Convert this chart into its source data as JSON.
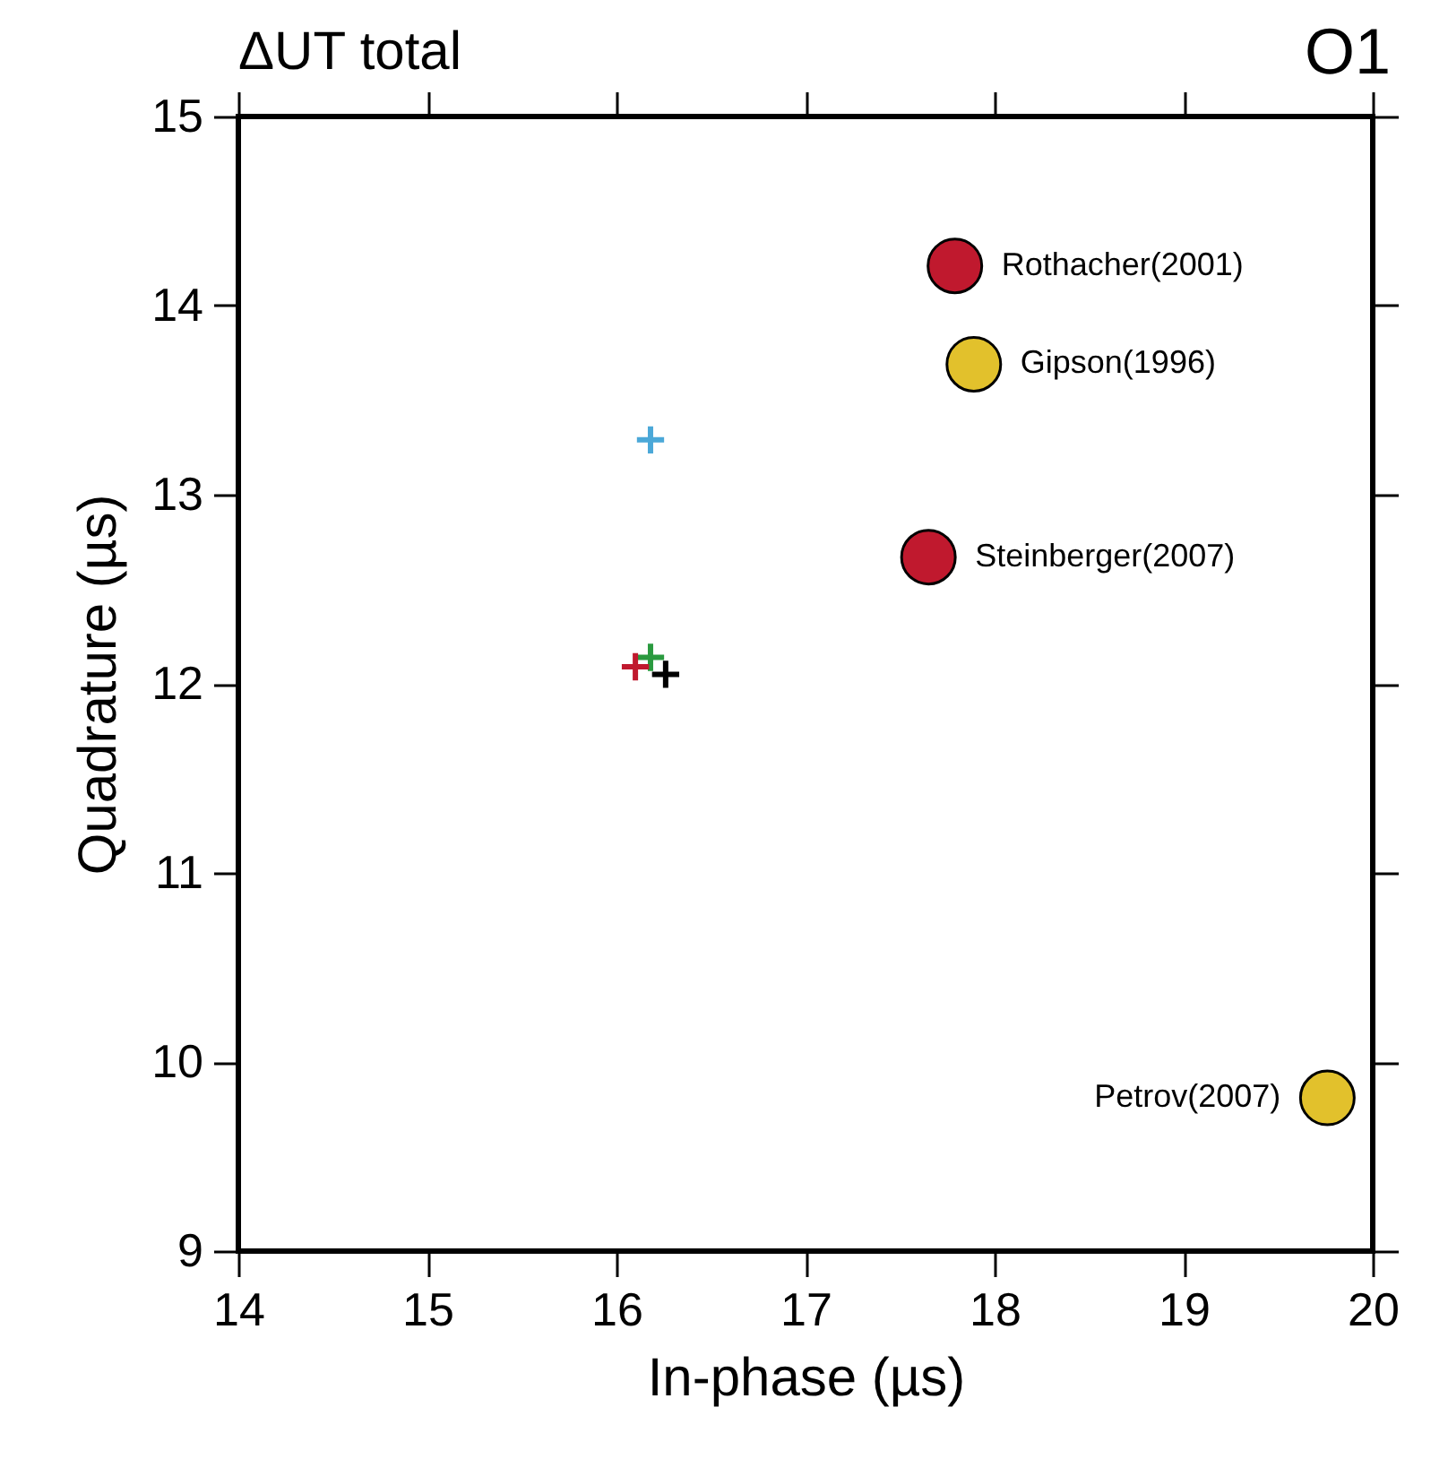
{
  "chart_data": {
    "type": "scatter",
    "title": "ΔUT total",
    "annotations": [
      "O1"
    ],
    "xlabel": "In-phase (µs)",
    "ylabel": "Quadrature (µs)",
    "xlim": [
      14,
      20
    ],
    "xticks": [
      14,
      15,
      16,
      17,
      18,
      19,
      20
    ],
    "ylim": [
      9,
      15
    ],
    "yticks": [
      9,
      10,
      11,
      12,
      13,
      14,
      15
    ],
    "grid": false,
    "series": [
      {
        "color": "#4ba8d8",
        "marker": "cross",
        "x": [
          16.18
        ],
        "values": [
          13.29
        ]
      },
      {
        "color": "#2a9a3f",
        "marker": "cross",
        "x": [
          16.18
        ],
        "values": [
          12.14
        ]
      },
      {
        "color": "#c0192e",
        "marker": "cross",
        "x": [
          16.1
        ],
        "values": [
          12.09
        ]
      },
      {
        "color": "#000000",
        "marker": "cross",
        "x": [
          16.26
        ],
        "values": [
          12.05
        ]
      },
      {
        "name": "Rothacher(2001)",
        "color": "#c0192e",
        "marker": "circle",
        "x": [
          17.79
        ],
        "values": [
          14.21
        ]
      },
      {
        "name": "Gipson(1996)",
        "color": "#e2c12c",
        "marker": "circle",
        "x": [
          17.89
        ],
        "values": [
          13.69
        ]
      },
      {
        "name": "Steinberger(2007)",
        "color": "#c0192e",
        "marker": "circle",
        "x": [
          17.65
        ],
        "values": [
          12.67
        ]
      },
      {
        "name": "Petrov(2007)",
        "color": "#e2c12c",
        "marker": "circle",
        "x": [
          19.76
        ],
        "values": [
          9.81
        ]
      }
    ]
  }
}
